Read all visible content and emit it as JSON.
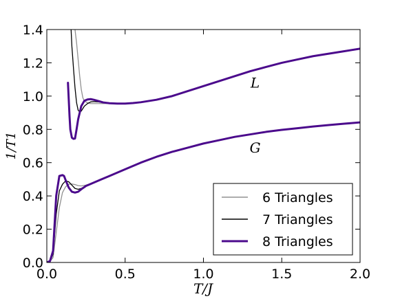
{
  "chart_data": {
    "type": "line",
    "xlabel": "T/J",
    "ylabel": "1/T1",
    "xlim": [
      0.0,
      2.0
    ],
    "ylim": [
      0.0,
      1.4
    ],
    "x_ticks": [
      "0.0",
      "0.5",
      "1.0",
      "1.5",
      "2.0"
    ],
    "y_ticks": [
      "0.0",
      "0.2",
      "0.4",
      "0.6",
      "0.8",
      "1.0",
      "1.2",
      "1.4"
    ],
    "grid": false,
    "legend_position": "lower-right",
    "annotations": [
      {
        "text": "L",
        "x": 1.33,
        "y": 1.08
      },
      {
        "text": "G",
        "x": 1.33,
        "y": 0.69
      }
    ],
    "series": [
      {
        "name": "6 Triangles",
        "group": "L",
        "color": "#909090",
        "width": 1.3,
        "x": [
          0.18,
          0.19,
          0.2,
          0.21,
          0.22,
          0.23,
          0.24,
          0.26,
          0.28,
          0.3,
          0.33,
          0.36,
          0.4,
          0.45,
          0.5,
          0.55,
          0.6,
          0.7,
          0.8,
          0.9,
          1.0,
          1.1,
          1.2,
          1.3,
          1.4,
          1.5,
          1.6,
          1.7,
          1.8,
          1.9,
          2.0
        ],
        "y": [
          1.4,
          1.32,
          1.22,
          1.12,
          1.04,
          0.99,
          0.97,
          0.96,
          0.955,
          0.955,
          0.955,
          0.955,
          0.955,
          0.955,
          0.955,
          0.958,
          0.963,
          0.978,
          1.0,
          1.03,
          1.06,
          1.09,
          1.12,
          1.15,
          1.175,
          1.2,
          1.22,
          1.24,
          1.255,
          1.27,
          1.285
        ]
      },
      {
        "name": "7 Triangles",
        "group": "L",
        "color": "#000000",
        "width": 1.3,
        "x": [
          0.155,
          0.16,
          0.17,
          0.18,
          0.19,
          0.2,
          0.21,
          0.22,
          0.24,
          0.26,
          0.28,
          0.3,
          0.33,
          0.36,
          0.4,
          0.45,
          0.5,
          0.55,
          0.6,
          0.7,
          0.8,
          0.9,
          1.0,
          1.1,
          1.2,
          1.3,
          1.4,
          1.5,
          1.6,
          1.7,
          1.8,
          1.9,
          2.0
        ],
        "y": [
          1.4,
          1.3,
          1.17,
          1.05,
          0.96,
          0.915,
          0.905,
          0.91,
          0.94,
          0.955,
          0.965,
          0.967,
          0.965,
          0.96,
          0.956,
          0.955,
          0.955,
          0.958,
          0.963,
          0.978,
          1.0,
          1.03,
          1.06,
          1.09,
          1.12,
          1.15,
          1.175,
          1.2,
          1.22,
          1.24,
          1.255,
          1.27,
          1.285
        ]
      },
      {
        "name": "8 Triangles",
        "group": "L",
        "color": "#4b0a8c",
        "width": 3,
        "x": [
          0.135,
          0.14,
          0.145,
          0.15,
          0.16,
          0.17,
          0.18,
          0.19,
          0.2,
          0.22,
          0.24,
          0.26,
          0.28,
          0.3,
          0.33,
          0.36,
          0.4,
          0.45,
          0.5,
          0.55,
          0.6,
          0.7,
          0.8,
          0.9,
          1.0,
          1.1,
          1.2,
          1.3,
          1.4,
          1.5,
          1.6,
          1.7,
          1.8,
          1.9,
          2.0
        ],
        "y": [
          1.08,
          0.98,
          0.88,
          0.8,
          0.75,
          0.743,
          0.745,
          0.8,
          0.86,
          0.94,
          0.972,
          0.98,
          0.982,
          0.978,
          0.97,
          0.962,
          0.957,
          0.955,
          0.955,
          0.958,
          0.963,
          0.978,
          1.0,
          1.03,
          1.06,
          1.09,
          1.12,
          1.15,
          1.175,
          1.2,
          1.22,
          1.24,
          1.255,
          1.27,
          1.285
        ]
      },
      {
        "name": "6 Triangles",
        "group": "G",
        "color": "#909090",
        "width": 1.3,
        "x": [
          0.0,
          0.02,
          0.04,
          0.06,
          0.08,
          0.1,
          0.12,
          0.14,
          0.16,
          0.18,
          0.2,
          0.22,
          0.25,
          0.3,
          0.35,
          0.4,
          0.5,
          0.6,
          0.7,
          0.8,
          0.9,
          1.0,
          1.1,
          1.2,
          1.3,
          1.4,
          1.5,
          1.6,
          1.7,
          1.8,
          1.9,
          2.0
        ],
        "y": [
          0.0,
          0.005,
          0.03,
          0.18,
          0.33,
          0.42,
          0.455,
          0.47,
          0.472,
          0.468,
          0.462,
          0.46,
          0.465,
          0.48,
          0.5,
          0.52,
          0.56,
          0.6,
          0.635,
          0.665,
          0.69,
          0.715,
          0.735,
          0.755,
          0.77,
          0.785,
          0.797,
          0.807,
          0.817,
          0.826,
          0.834,
          0.842
        ]
      },
      {
        "name": "7 Triangles",
        "group": "G",
        "color": "#000000",
        "width": 1.3,
        "x": [
          0.0,
          0.02,
          0.04,
          0.06,
          0.08,
          0.1,
          0.12,
          0.14,
          0.16,
          0.18,
          0.2,
          0.22,
          0.25,
          0.3,
          0.35,
          0.4,
          0.5,
          0.6,
          0.7,
          0.8,
          0.9,
          1.0,
          1.1,
          1.2,
          1.3,
          1.4,
          1.5,
          1.6,
          1.7,
          1.8,
          1.9,
          2.0
        ],
        "y": [
          0.0,
          0.006,
          0.05,
          0.29,
          0.43,
          0.47,
          0.49,
          0.485,
          0.465,
          0.445,
          0.44,
          0.445,
          0.46,
          0.48,
          0.5,
          0.52,
          0.56,
          0.6,
          0.635,
          0.665,
          0.69,
          0.715,
          0.735,
          0.755,
          0.77,
          0.785,
          0.797,
          0.807,
          0.817,
          0.826,
          0.834,
          0.842
        ]
      },
      {
        "name": "8 Triangles",
        "group": "G",
        "color": "#4b0a8c",
        "width": 3,
        "x": [
          0.0,
          0.02,
          0.04,
          0.06,
          0.08,
          0.1,
          0.11,
          0.12,
          0.14,
          0.16,
          0.18,
          0.2,
          0.22,
          0.25,
          0.3,
          0.35,
          0.4,
          0.5,
          0.6,
          0.7,
          0.8,
          0.9,
          1.0,
          1.1,
          1.2,
          1.3,
          1.4,
          1.5,
          1.6,
          1.7,
          1.8,
          1.9,
          2.0
        ],
        "y": [
          0.0,
          0.008,
          0.07,
          0.4,
          0.52,
          0.525,
          0.52,
          0.495,
          0.45,
          0.425,
          0.42,
          0.425,
          0.44,
          0.46,
          0.48,
          0.5,
          0.52,
          0.56,
          0.6,
          0.635,
          0.665,
          0.69,
          0.715,
          0.735,
          0.755,
          0.77,
          0.785,
          0.797,
          0.807,
          0.817,
          0.826,
          0.834,
          0.842
        ]
      }
    ],
    "legend": [
      {
        "label": "6 Triangles",
        "color": "#909090"
      },
      {
        "label": "7 Triangles",
        "color": "#000000"
      },
      {
        "label": "8 Triangles",
        "color": "#4b0a8c"
      }
    ]
  }
}
